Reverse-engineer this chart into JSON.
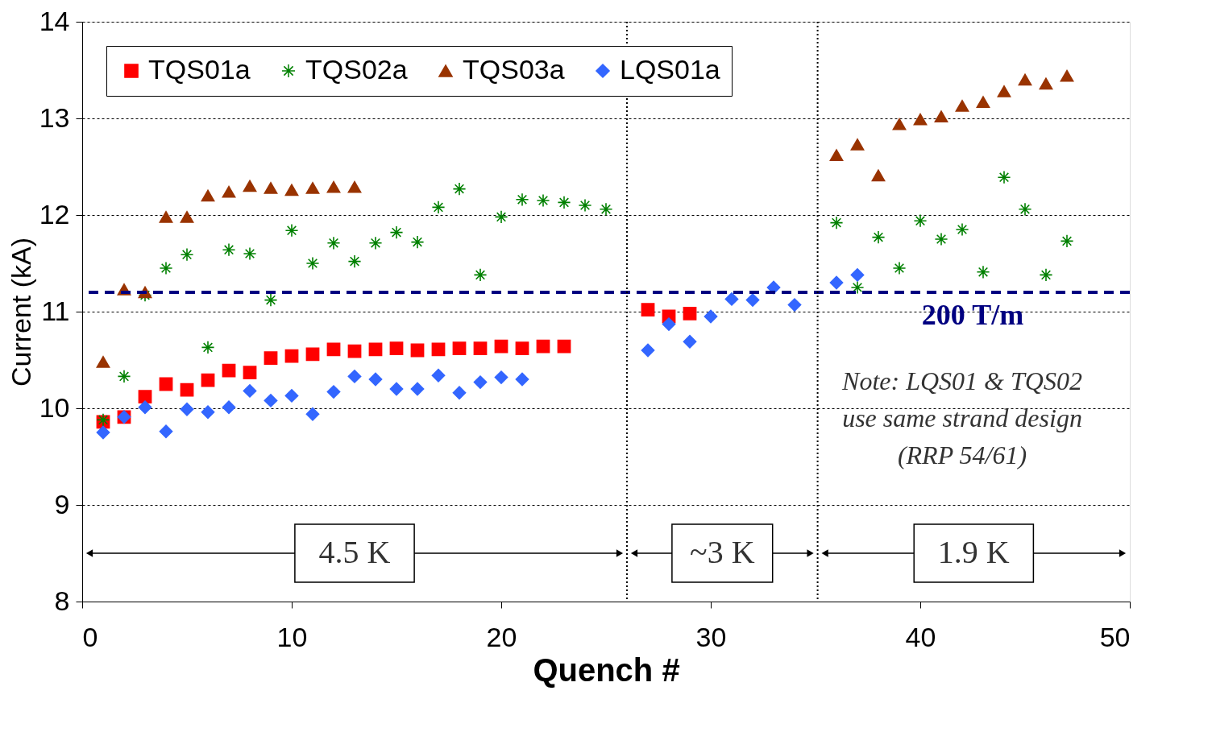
{
  "chart_data": {
    "type": "scatter",
    "xlabel": "Quench #",
    "ylabel": "Current (kA)",
    "xlim": [
      0,
      50
    ],
    "xticks": [
      0,
      10,
      20,
      30,
      40,
      50
    ],
    "ylim": [
      8,
      14
    ],
    "yticks": [
      8,
      9,
      10,
      11,
      12,
      13,
      14
    ],
    "grid": "y",
    "legend": "top left",
    "series": [
      {
        "name": "TQS01a",
        "color": "#ff0000",
        "marker": "square",
        "x": [
          1,
          2,
          3,
          4,
          5,
          6,
          7,
          8,
          9,
          10,
          11,
          12,
          13,
          14,
          15,
          16,
          17,
          18,
          19,
          20,
          21,
          22,
          23,
          27,
          28,
          29
        ],
        "values": [
          9.86,
          9.91,
          10.12,
          10.25,
          10.19,
          10.29,
          10.39,
          10.37,
          10.52,
          10.54,
          10.56,
          10.61,
          10.59,
          10.61,
          10.62,
          10.6,
          10.61,
          10.62,
          10.62,
          10.64,
          10.62,
          10.64,
          10.64,
          11.02,
          10.95,
          10.98
        ]
      },
      {
        "name": "TQS02a",
        "color": "#008000",
        "marker": "cross",
        "x": [
          1,
          2,
          3,
          4,
          5,
          6,
          7,
          8,
          9,
          10,
          11,
          12,
          13,
          14,
          15,
          16,
          17,
          18,
          19,
          20,
          21,
          22,
          23,
          24,
          25,
          36,
          37,
          38,
          39,
          40,
          41,
          42,
          43,
          44,
          45,
          46,
          47
        ],
        "values": [
          9.88,
          10.33,
          11.17,
          11.45,
          11.59,
          10.63,
          11.64,
          11.6,
          11.12,
          11.84,
          11.5,
          11.71,
          11.52,
          11.71,
          11.82,
          11.72,
          12.08,
          12.27,
          11.38,
          11.98,
          12.16,
          12.15,
          12.13,
          12.1,
          12.06,
          11.92,
          11.25,
          11.77,
          11.45,
          11.94,
          11.75,
          11.85,
          11.41,
          12.39,
          12.06,
          11.38,
          11.73
        ]
      },
      {
        "name": "TQS03a",
        "color": "#993300",
        "marker": "triangle",
        "x": [
          1,
          2,
          3,
          4,
          5,
          6,
          7,
          8,
          9,
          10,
          11,
          12,
          13,
          36,
          37,
          38,
          39,
          40,
          41,
          42,
          43,
          44,
          45,
          46,
          47
        ],
        "values": [
          10.48,
          11.23,
          11.2,
          11.98,
          11.98,
          12.2,
          12.24,
          12.3,
          12.28,
          12.26,
          12.28,
          12.29,
          12.29,
          12.62,
          12.73,
          12.41,
          12.94,
          12.99,
          13.02,
          13.13,
          13.17,
          13.28,
          13.4,
          13.36,
          13.44
        ]
      },
      {
        "name": "LQS01a",
        "color": "#3366ff",
        "marker": "diamond",
        "x": [
          1,
          2,
          3,
          4,
          5,
          6,
          7,
          8,
          9,
          10,
          11,
          12,
          13,
          14,
          15,
          16,
          17,
          18,
          19,
          20,
          21,
          27,
          28,
          29,
          30,
          31,
          32,
          33,
          34,
          36,
          37
        ],
        "values": [
          9.75,
          9.91,
          10.01,
          9.76,
          9.99,
          9.96,
          10.01,
          10.18,
          10.08,
          10.13,
          9.94,
          10.17,
          10.33,
          10.3,
          10.2,
          10.2,
          10.34,
          10.16,
          10.27,
          10.32,
          10.3,
          10.6,
          10.87,
          10.69,
          10.95,
          11.13,
          11.12,
          11.25,
          11.07,
          11.3,
          11.38
        ]
      }
    ],
    "ref_lines": [
      {
        "axis": "y",
        "value": 11.2,
        "label": "200 T/m",
        "color": "#000080",
        "line_style": "dashed"
      },
      {
        "axis": "x",
        "value": 26,
        "color": "#000000",
        "line_style": "dotted"
      },
      {
        "axis": "x",
        "value": 35.1,
        "color": "#000000",
        "line_style": "dotted"
      }
    ],
    "annotations": [
      "4.5 K",
      "~3 K",
      "1.9 K",
      "Note: LQS01 & TQS02 use same strand design (RRP 54/61)"
    ]
  }
}
